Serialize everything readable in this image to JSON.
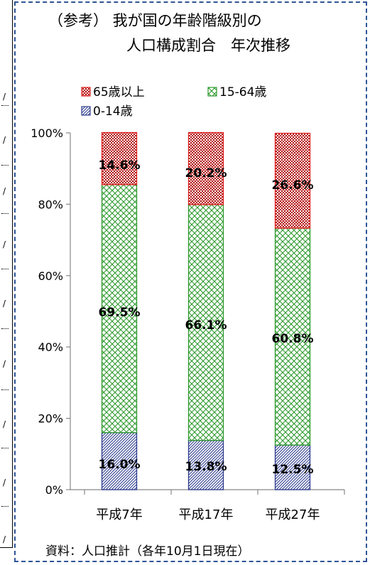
{
  "chart_data": {
    "type": "bar",
    "stacked": true,
    "title": [
      "（参考） 我が国の年齢階級別の",
      "人口構成割合　年次推移"
    ],
    "categories": [
      "平成7年",
      "平成17年",
      "平成27年"
    ],
    "series": [
      {
        "name": "0-14歳",
        "values": [
          16.0,
          13.8,
          12.5
        ],
        "labels": [
          "16.0%",
          "13.8%",
          "12.5%"
        ],
        "color": "#2f3d8f",
        "pattern": "diagonal"
      },
      {
        "name": "15-64歳",
        "values": [
          69.5,
          66.1,
          60.8
        ],
        "labels": [
          "69.5%",
          "66.1%",
          "60.8%"
        ],
        "color": "#2e9a2e",
        "pattern": "crosshatch"
      },
      {
        "name": "65歳以上",
        "values": [
          14.6,
          20.2,
          26.6
        ],
        "labels": [
          "14.6%",
          "20.2%",
          "26.6%"
        ],
        "color": "#e02020",
        "pattern": "dots"
      }
    ],
    "legend_order": [
      "65歳以上",
      "15-64歳",
      "0-14歳"
    ],
    "legend_position": "top",
    "ylim": [
      0,
      100
    ],
    "yticks": [
      "0%",
      "20%",
      "40%",
      "60%",
      "80%",
      "100%"
    ],
    "grid": false,
    "source": "資料：人口推計（各年10月1日現在）"
  }
}
